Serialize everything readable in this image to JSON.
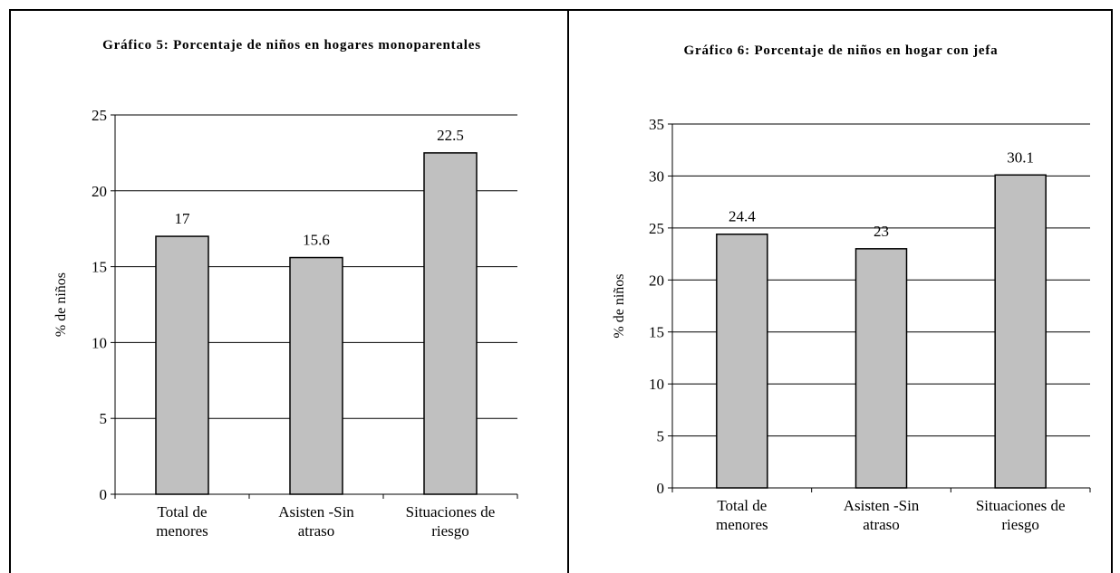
{
  "chart_data": [
    {
      "type": "bar",
      "title": "Gráfico 5: Porcentaje de niños en hogares monoparentales",
      "ylabel": "% de niños",
      "xlabel": "",
      "categories": [
        [
          "Total de",
          "menores"
        ],
        [
          "Asisten -Sin",
          "atraso"
        ],
        [
          "Situaciones de",
          "riesgo"
        ]
      ],
      "values": [
        17,
        15.6,
        22.5
      ],
      "data_labels": [
        "17",
        "15.6",
        "22.5"
      ],
      "ylim": [
        0,
        25
      ],
      "yticks": [
        0,
        5,
        10,
        15,
        20,
        25
      ],
      "grid": true,
      "bar_color": "#c0c0c0"
    },
    {
      "type": "bar",
      "title": "Gráfico 6: Porcentaje de niños en hogar con jefa",
      "ylabel": "% de niños",
      "xlabel": "",
      "categories": [
        [
          "Total de",
          "menores"
        ],
        [
          "Asisten -Sin",
          "atraso"
        ],
        [
          "Situaciones de",
          "riesgo"
        ]
      ],
      "values": [
        24.4,
        23,
        30.1
      ],
      "data_labels": [
        "24.4",
        "23",
        "30.1"
      ],
      "ylim": [
        0,
        35
      ],
      "yticks": [
        0,
        5,
        10,
        15,
        20,
        25,
        30,
        35
      ],
      "grid": true,
      "bar_color": "#c0c0c0"
    }
  ]
}
